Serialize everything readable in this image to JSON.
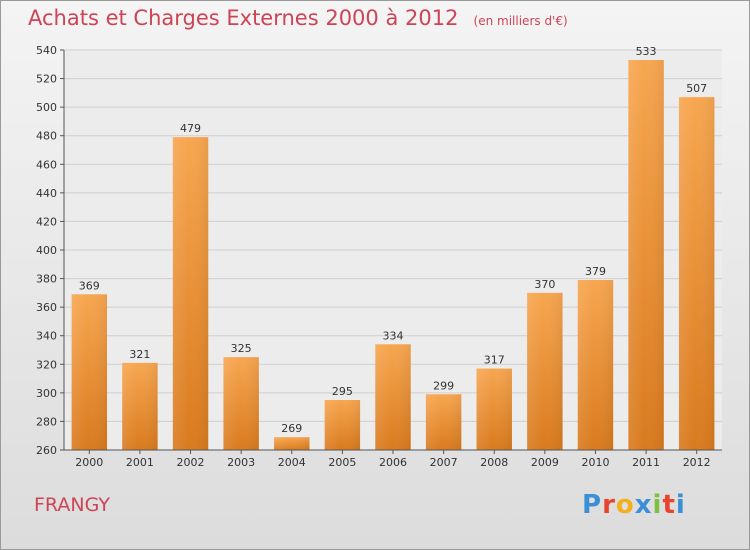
{
  "chart_data": {
    "type": "bar",
    "title": "Achats et Charges Externes 2000 à 2012",
    "subtitle": "(en milliers d'€)",
    "categories": [
      "2000",
      "2001",
      "2002",
      "2003",
      "2004",
      "2005",
      "2006",
      "2007",
      "2008",
      "2009",
      "2010",
      "2011",
      "2012"
    ],
    "values": [
      369,
      321,
      479,
      325,
      269,
      295,
      334,
      299,
      317,
      370,
      379,
      533,
      507
    ],
    "ylim": [
      260,
      540
    ],
    "yticks": [
      260,
      280,
      300,
      320,
      340,
      360,
      380,
      400,
      420,
      440,
      460,
      480,
      500,
      520,
      540
    ],
    "grid": true,
    "bar_color_top": "#f7a650",
    "bar_color_bottom": "#d97a1e"
  },
  "place_name": "FRANGY",
  "logo": {
    "text": "Proxiti",
    "letter_colors": [
      "#3b8fd6",
      "#e8442c",
      "#f2b01e",
      "#3b8fd6",
      "#7cc242",
      "#e8442c",
      "#3b8fd6"
    ]
  }
}
